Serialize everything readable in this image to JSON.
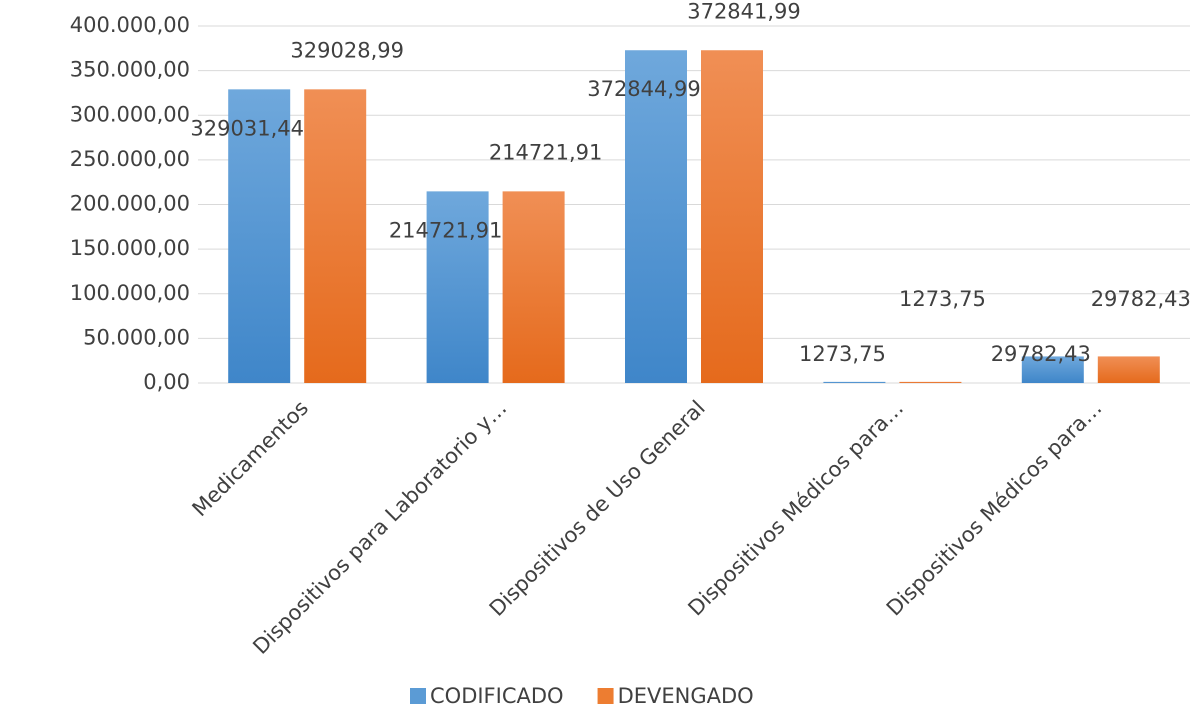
{
  "chart_data": {
    "type": "bar",
    "categories": [
      "Medicamentos",
      "Dispositivos para Laboratorio y…",
      "Dispositivos de Uso General",
      "Dispositivos Médicos para…",
      "Dispositivos Médicos para…"
    ],
    "series": [
      {
        "name": "CODIFICADO",
        "color": "#5b9bd5",
        "values": [
          329031.44,
          214721.91,
          372844.99,
          1273.75,
          29782.43
        ],
        "value_labels": [
          "329031,44",
          "214721,91",
          "372844,99",
          "1273,75",
          "29782,43"
        ]
      },
      {
        "name": "DEVENGADO",
        "color": "#ed7d31",
        "values": [
          329028.99,
          214721.91,
          372841.99,
          1273.75,
          29782.43
        ],
        "value_labels": [
          "329028,99",
          "214721,91",
          "372841,99",
          "1273,75",
          "29782,43"
        ]
      }
    ],
    "ylim": [
      0,
      400000
    ],
    "yticks": [
      {
        "value": 0,
        "label": "0,00"
      },
      {
        "value": 50000,
        "label": "50.000,00"
      },
      {
        "value": 100000,
        "label": "100.000,00"
      },
      {
        "value": 150000,
        "label": "150.000,00"
      },
      {
        "value": 200000,
        "label": "200.000,00"
      },
      {
        "value": 250000,
        "label": "250.000,00"
      },
      {
        "value": 300000,
        "label": "300.000,00"
      },
      {
        "value": 350000,
        "label": "350.000,00"
      },
      {
        "value": 400000,
        "label": "400.000,00"
      }
    ],
    "grid": true,
    "legend": "bottom"
  }
}
